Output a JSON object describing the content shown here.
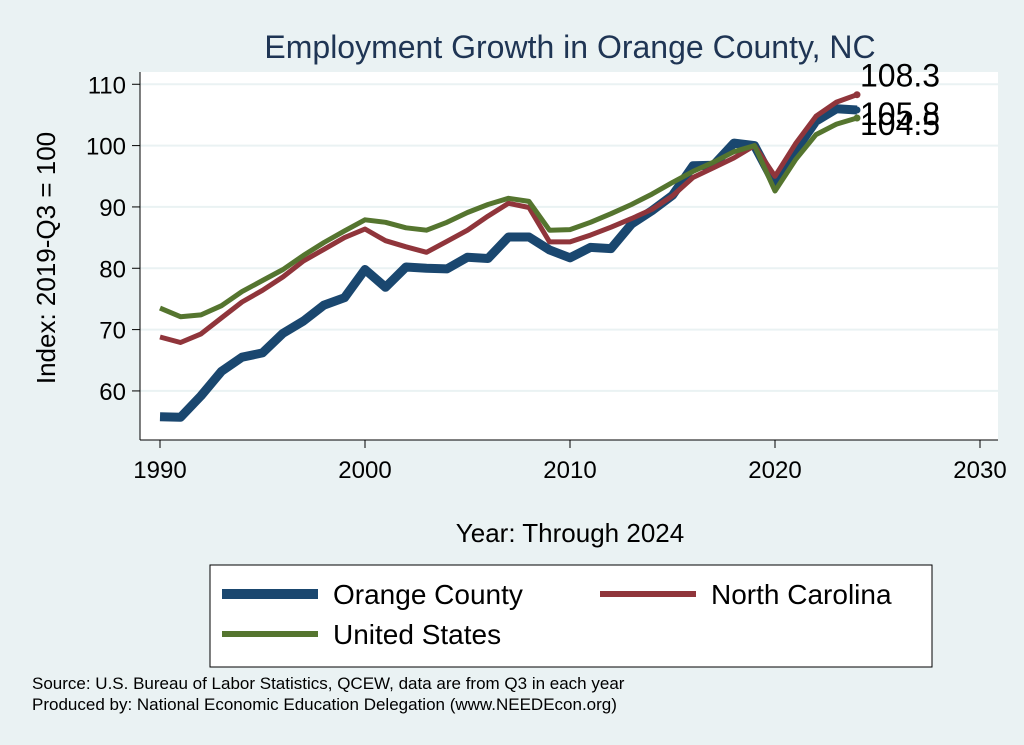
{
  "chart_data": {
    "type": "line",
    "title": "Employment Growth in Orange County, NC",
    "xlabel": "Year: Through 2024",
    "ylabel": "Index: 2019-Q3 = 100",
    "xlim": [
      1990,
      2030
    ],
    "ylim": [
      52,
      112
    ],
    "xticks": [
      1990,
      2000,
      2010,
      2020,
      2030
    ],
    "yticks": [
      60,
      70,
      80,
      90,
      100,
      110
    ],
    "grid": true,
    "x": [
      1990,
      1991,
      1992,
      1993,
      1994,
      1995,
      1996,
      1997,
      1998,
      1999,
      2000,
      2001,
      2002,
      2003,
      2004,
      2005,
      2006,
      2007,
      2008,
      2009,
      2010,
      2011,
      2012,
      2013,
      2014,
      2015,
      2016,
      2017,
      2018,
      2019,
      2020,
      2021,
      2022,
      2023,
      2024
    ],
    "series": [
      {
        "name": "Orange  County",
        "color": "#1a476f",
        "weight": "thick",
        "values": [
          55.8,
          55.7,
          59.2,
          63.2,
          65.5,
          66.2,
          69.4,
          71.4,
          74,
          75.2,
          79.8,
          76.9,
          80.2,
          80,
          79.9,
          81.8,
          81.6,
          85.1,
          85.1,
          83,
          81.7,
          83.4,
          83.2,
          87.2,
          89.4,
          91.9,
          96.7,
          96.8,
          100.4,
          100,
          93.7,
          99.2,
          104,
          106,
          105.8
        ]
      },
      {
        "name": "North Carolina",
        "color": "#90353b",
        "weight": "normal",
        "values": [
          68.8,
          67.9,
          69.3,
          71.9,
          74.5,
          76.4,
          78.6,
          81.2,
          83.1,
          85,
          86.4,
          84.5,
          83.5,
          82.6,
          84.4,
          86.2,
          88.5,
          90.6,
          89.9,
          84.3,
          84.3,
          85.4,
          86.7,
          88.1,
          89.6,
          91.8,
          94.8,
          96.4,
          98,
          100,
          95,
          100.3,
          104.8,
          107.1,
          108.3
        ]
      },
      {
        "name": "United States",
        "color": "#55752f",
        "weight": "normal",
        "values": [
          73.5,
          72.1,
          72.4,
          73.9,
          76.2,
          78,
          79.8,
          82.1,
          84.2,
          86.1,
          87.9,
          87.5,
          86.6,
          86.2,
          87.5,
          89.1,
          90.4,
          91.4,
          90.9,
          86.2,
          86.3,
          87.5,
          88.9,
          90.4,
          92.1,
          94,
          95.8,
          97.3,
          99,
          100,
          92.6,
          97.7,
          101.8,
          103.5,
          104.5
        ]
      }
    ],
    "end_labels": [
      "105.8",
      "108.3",
      "104.5"
    ],
    "legend": {
      "placement": "bottom",
      "entries": [
        "Orange  County",
        "North Carolina",
        "United States"
      ]
    }
  },
  "source": {
    "line1": "Source: U.S. Bureau of Labor Statistics, QCEW, data are from Q3 in each year",
    "line2": "Produced by: National Economic Education Delegation (www.NEEDEcon.org)"
  },
  "colors": {
    "background": "#eaf2f3",
    "plot_background": "#ffffff",
    "gridline": "#eaf2f3",
    "title": "#1f3554"
  }
}
